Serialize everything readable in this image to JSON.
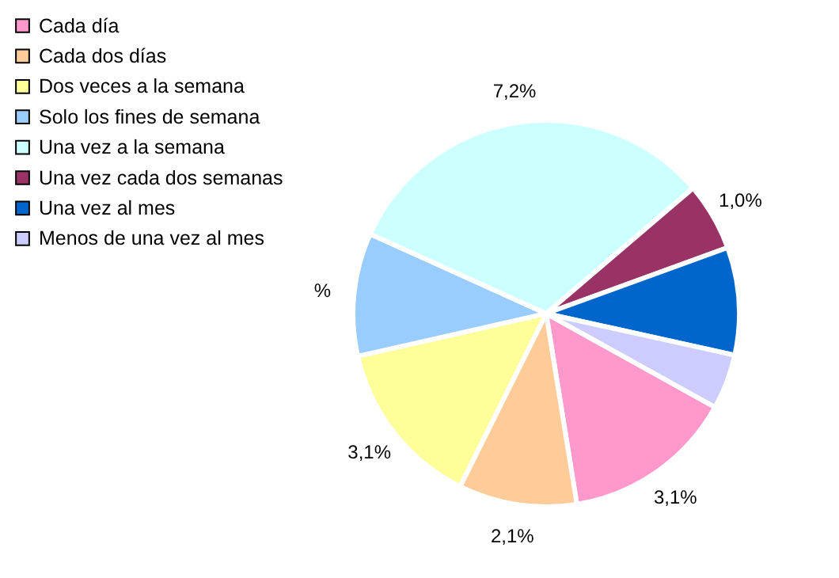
{
  "chart_data": {
    "type": "pie",
    "categories": [
      "Cada día",
      "Cada dos días",
      "Dos veces a la semana",
      "Solo los fines de semana",
      "Una vez a la semana",
      "Una vez cada dos semanas",
      "Una vez al mes",
      "Menos de una vez al mes"
    ],
    "values": [
      14.4,
      9.9,
      14.1,
      10.3,
      32.0,
      5.7,
      9.0,
      4.6
    ],
    "colors": [
      "#ff99cc",
      "#ffcc99",
      "#ffff99",
      "#99ccff",
      "#ccffff",
      "#993366",
      "#0066cc",
      "#ccccff"
    ],
    "annotations": [
      "3,1%",
      "2,1%",
      "3,1%",
      "%",
      "7,2%",
      "1,0%"
    ],
    "legend": "top left"
  }
}
